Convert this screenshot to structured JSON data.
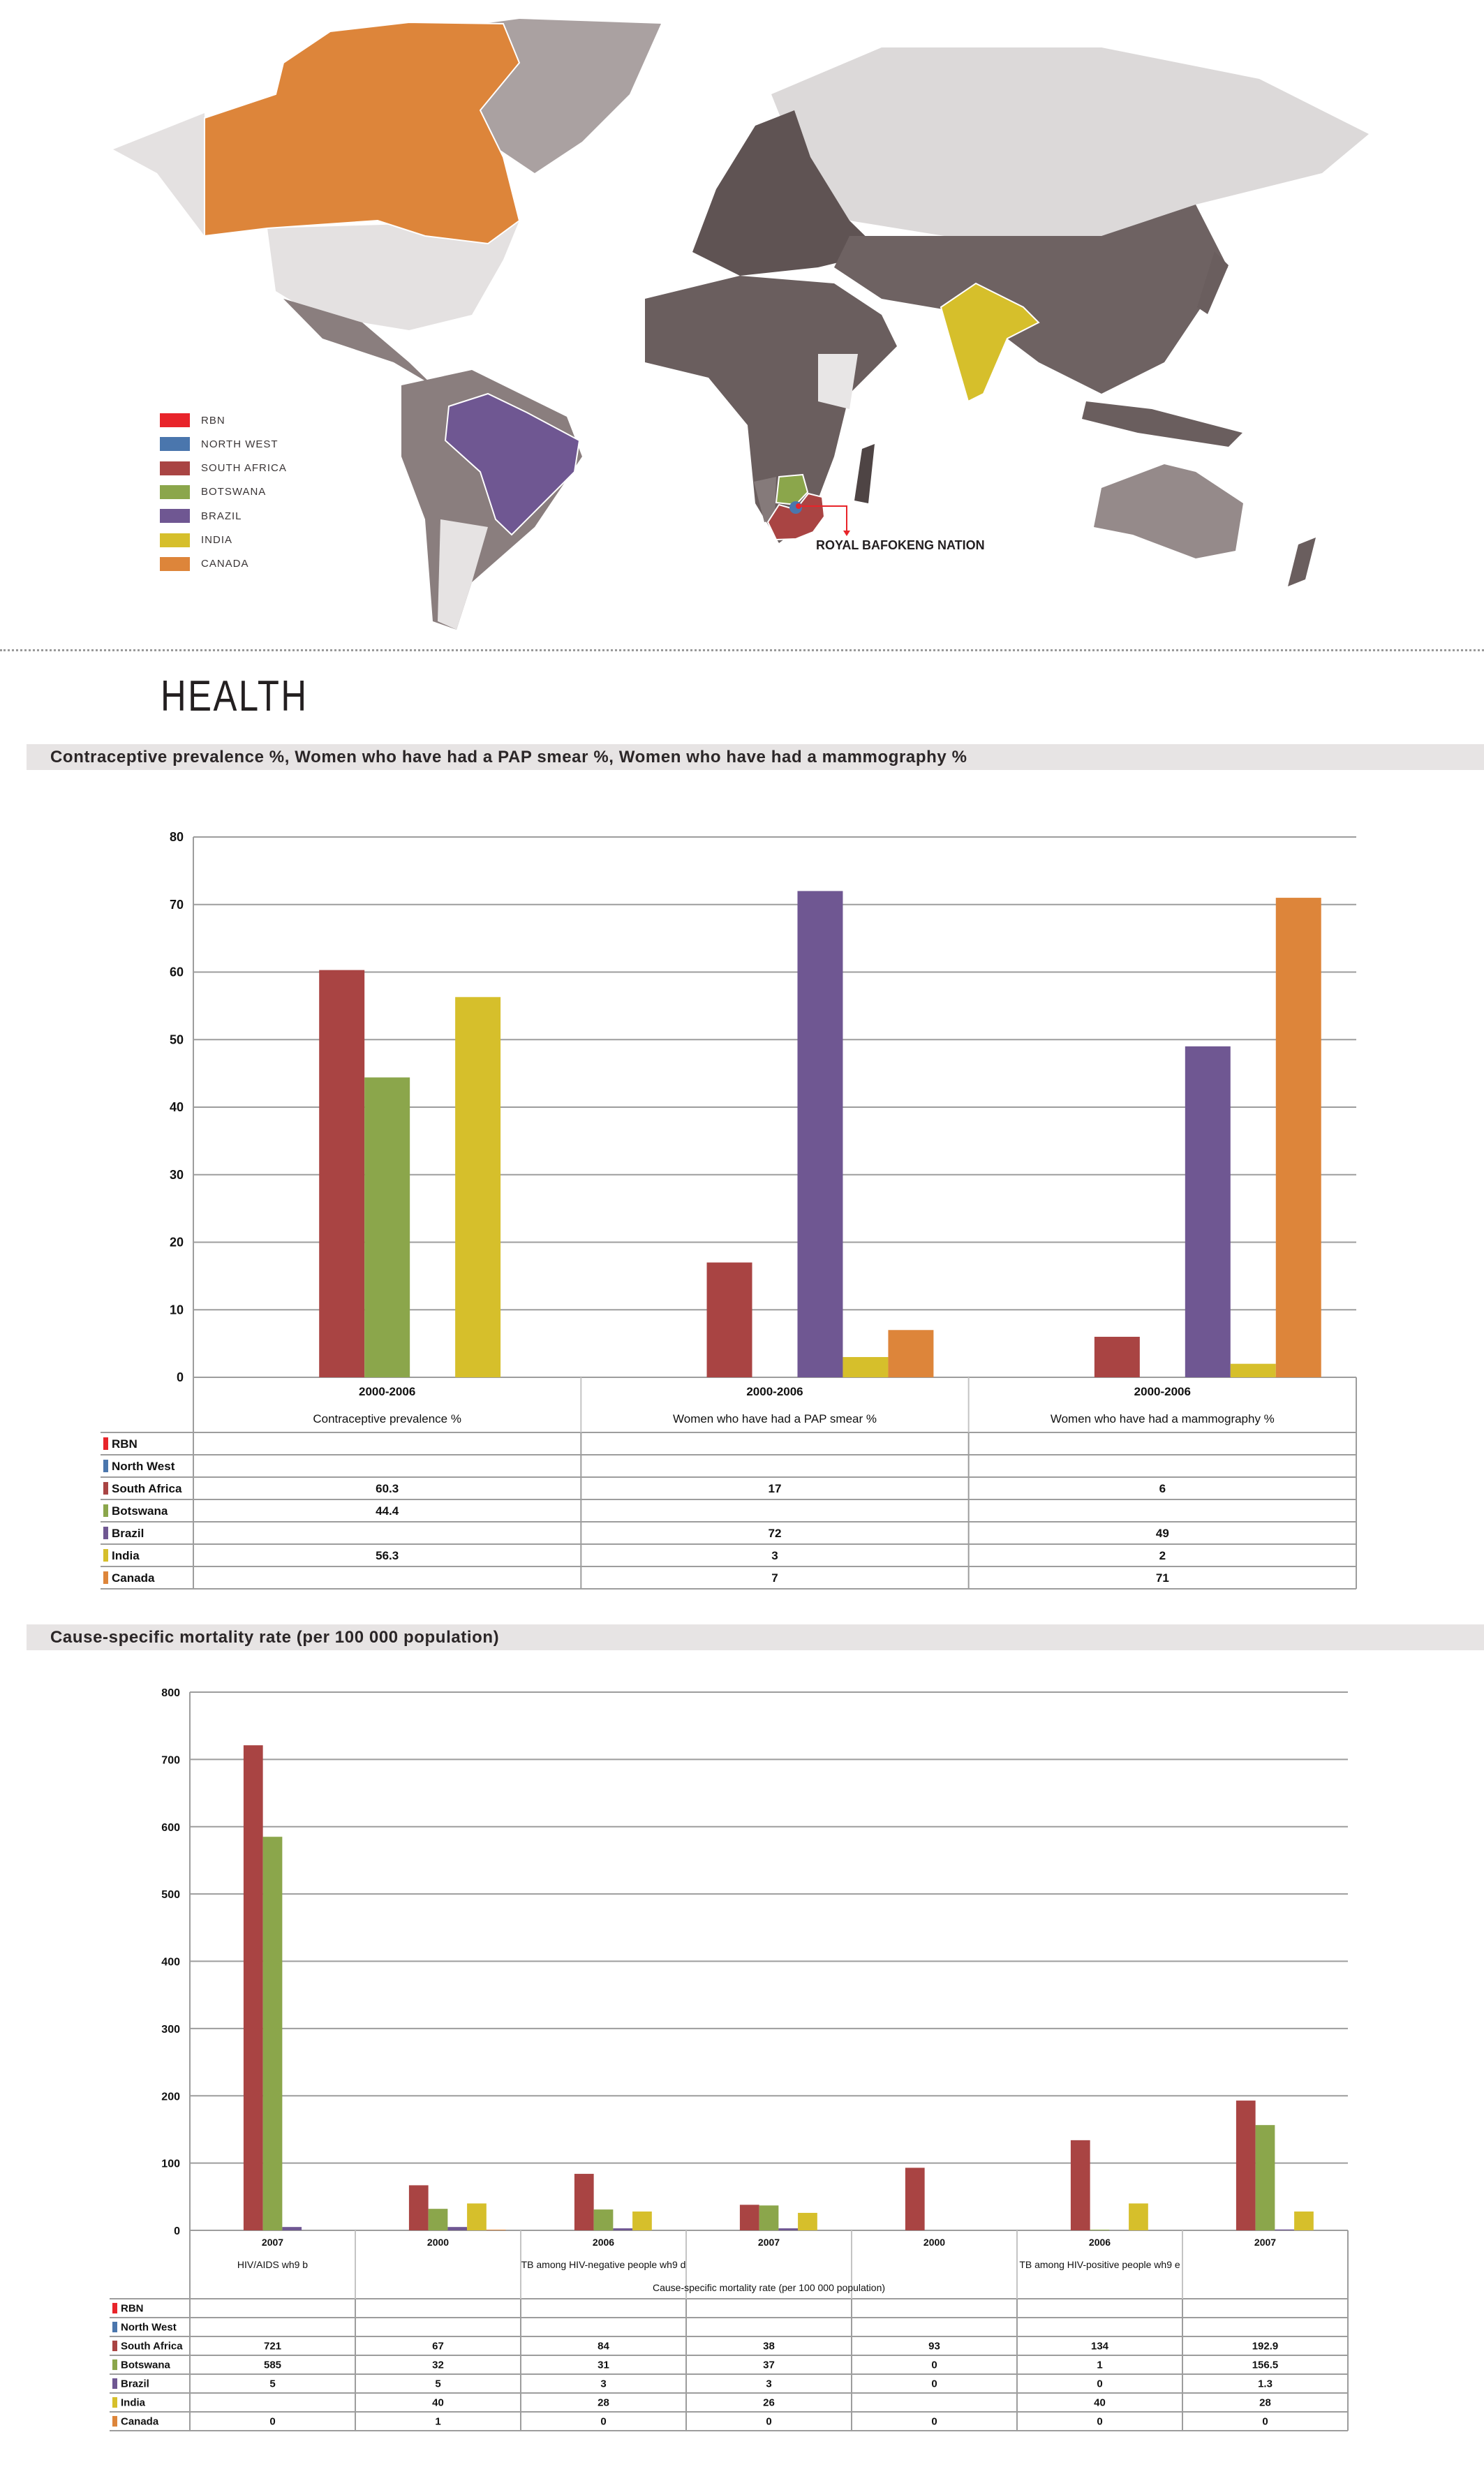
{
  "map": {
    "legend": [
      {
        "label": "RBN",
        "color": "#e8242a"
      },
      {
        "label": "NORTH WEST",
        "color": "#4a76ad"
      },
      {
        "label": "SOUTH AFRICA",
        "color": "#a94443"
      },
      {
        "label": "BOTSWANA",
        "color": "#8ba64b"
      },
      {
        "label": "BRAZIL",
        "color": "#6f5792"
      },
      {
        "label": "INDIA",
        "color": "#d6bf2b"
      },
      {
        "label": "CANADA",
        "color": "#dd853a"
      }
    ],
    "callout_label": "ROYAL BAFOKENG NATION"
  },
  "section_title": "HEALTH",
  "chart_data": [
    {
      "type": "bar",
      "title": "Contraceptive prevalence %, Women who have had a PAP smear %, Women who have had a mammography %",
      "categories": [
        "Contraceptive prevalence %",
        "Women who have had a PAP smear %",
        "Women who have had a mammography %"
      ],
      "category_periods": [
        "2000-2006",
        "2000-2006",
        "2000-2006"
      ],
      "ylim": [
        0,
        80
      ],
      "yticks": [
        "0",
        "10",
        "20",
        "30",
        "40",
        "50",
        "60",
        "70",
        "80"
      ],
      "grid": true,
      "legend": "data-table",
      "series": [
        {
          "name": "RBN",
          "color": "#e8242a",
          "values": [
            null,
            null,
            null
          ]
        },
        {
          "name": "North West",
          "color": "#4a76ad",
          "values": [
            null,
            null,
            null
          ]
        },
        {
          "name": "South Africa",
          "color": "#a94443",
          "values": [
            60.3,
            17,
            6
          ]
        },
        {
          "name": "Botswana",
          "color": "#8ba64b",
          "values": [
            44.4,
            null,
            null
          ]
        },
        {
          "name": "Brazil",
          "color": "#6f5792",
          "values": [
            null,
            72,
            49
          ]
        },
        {
          "name": "India",
          "color": "#d6bf2b",
          "values": [
            56.3,
            3,
            2
          ]
        },
        {
          "name": "Canada",
          "color": "#dd853a",
          "values": [
            null,
            7,
            71
          ]
        }
      ]
    },
    {
      "type": "bar",
      "title": "Cause-specific  mortality rate (per 100 000 population)",
      "xlabel": "Cause-specific  mortality rate (per 100 000 population)",
      "categories": [
        "2007",
        "2000",
        "2006",
        "2007",
        "2000",
        "2006",
        "2007"
      ],
      "groups": [
        {
          "label": "HIV/AIDS wh9 b",
          "span": 1
        },
        {
          "label": "TB among HIV-negative people wh9 d",
          "span": 3
        },
        {
          "label": "TB among HIV-positive people wh9 e",
          "span": 3
        }
      ],
      "ylim": [
        0,
        800
      ],
      "yticks": [
        "0",
        "100",
        "200",
        "300",
        "400",
        "500",
        "600",
        "700",
        "800"
      ],
      "grid": true,
      "legend": "data-table",
      "series": [
        {
          "name": "RBN",
          "color": "#e8242a",
          "values": [
            null,
            null,
            null,
            null,
            null,
            null,
            null
          ]
        },
        {
          "name": "North West",
          "color": "#4a76ad",
          "values": [
            null,
            null,
            null,
            null,
            null,
            null,
            null
          ]
        },
        {
          "name": "South Africa",
          "color": "#a94443",
          "values": [
            721,
            67,
            84,
            38,
            93,
            134,
            192.9
          ]
        },
        {
          "name": "Botswana",
          "color": "#8ba64b",
          "values": [
            585,
            32,
            31,
            37,
            0,
            1,
            156.5
          ]
        },
        {
          "name": "Brazil",
          "color": "#6f5792",
          "values": [
            5,
            5,
            3,
            3,
            0,
            0,
            1.3
          ]
        },
        {
          "name": "India",
          "color": "#d6bf2b",
          "values": [
            null,
            40,
            28,
            26,
            null,
            40,
            28
          ]
        },
        {
          "name": "Canada",
          "color": "#dd853a",
          "values": [
            0,
            1,
            0,
            0,
            0,
            0,
            0
          ]
        }
      ]
    }
  ]
}
